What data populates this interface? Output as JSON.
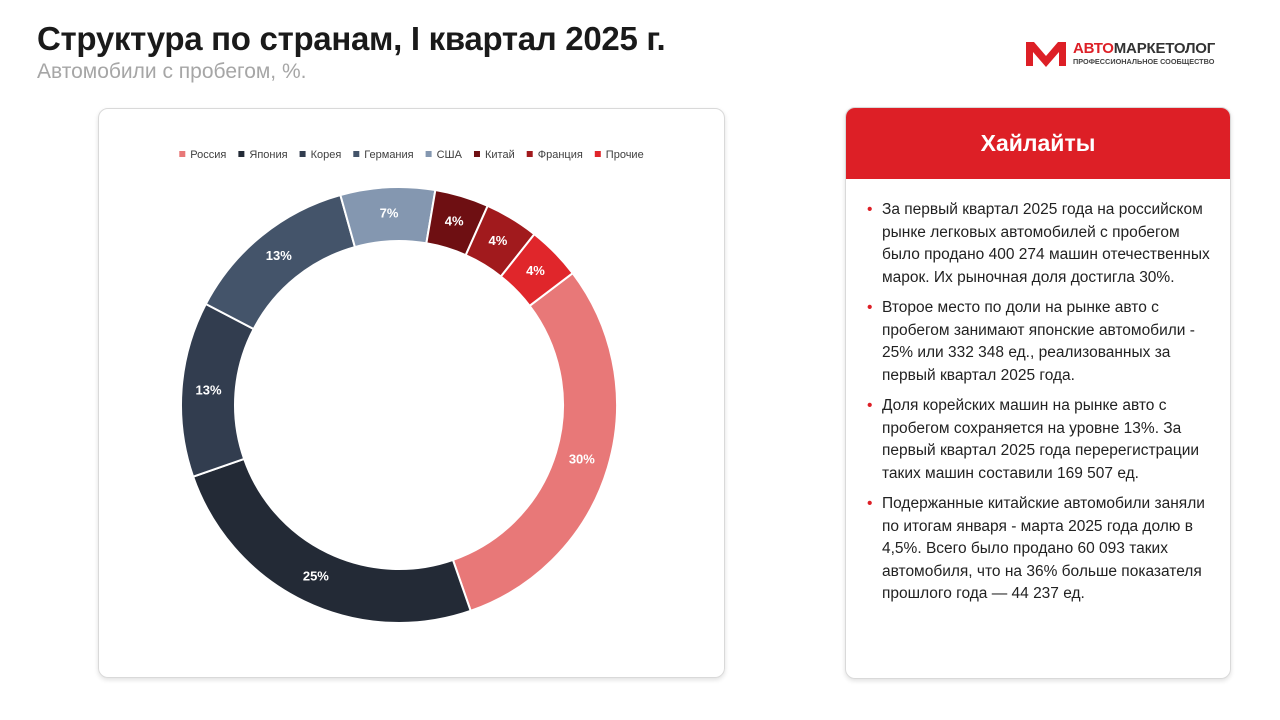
{
  "title": "Структура по странам, I квартал 2025 г.",
  "subtitle": "Автомобили с пробегом, %.",
  "logo": {
    "name": [
      "АВТО",
      "МАРКЕТОЛОГ"
    ],
    "tagline": "ПРОФЕССИОНАЛЬНОЕ СООБЩЕСТВО"
  },
  "chart_data": {
    "type": "donut",
    "categories": [
      "Россия",
      "Япония",
      "Корея",
      "Германия",
      "США",
      "Китай",
      "Франция",
      "Прочие"
    ],
    "values": [
      30,
      25,
      13,
      13,
      7,
      4,
      4,
      4
    ],
    "value_labels": [
      "30%",
      "25%",
      "13%",
      "13%",
      "7%",
      "4%",
      "4%",
      "4%"
    ],
    "colors": [
      "#e87878",
      "#232a36",
      "#323d4f",
      "#44546a",
      "#8497b0",
      "#6e0f12",
      "#a11a1d",
      "#e0262b"
    ],
    "legend_position": "top"
  },
  "highlights": {
    "title": "Хайлайты",
    "items": [
      "За первый квартал 2025 года на российском рынке легковых автомобилей с пробегом было продано 400 274 машин отечественных марок. Их рыночная доля достигла 30%.",
      "Второе место по доли на рынке авто с пробегом занимают японские автомобили - 25% или 332 348 ед., реализованных за первый квартал 2025 года.",
      "Доля корейских машин на рынке авто с пробегом сохраняется на уровне 13%. За первый квартал 2025 года перерегистрации таких машин составили 169 507 ед.",
      "Подержанные китайские автомобили заняли по итогам января - марта 2025 года долю в 4,5%. Всего было продано 60 093 таких автомобиля, что на 36% больше показателя прошлого года — 44 237 ед."
    ]
  }
}
